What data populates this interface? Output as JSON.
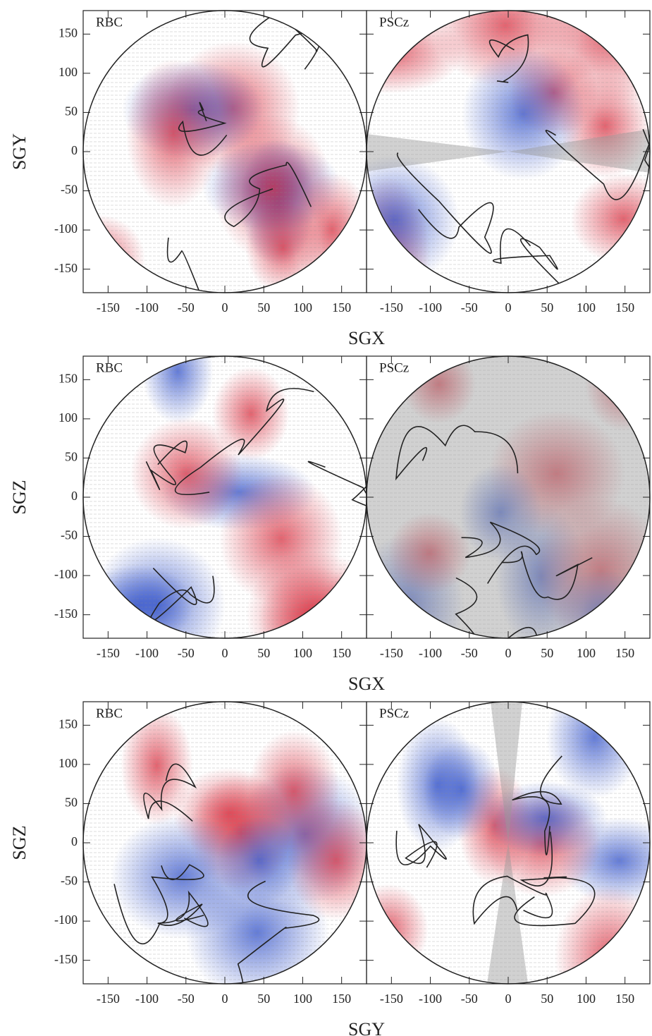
{
  "chart_data": [
    {
      "type": "vector-field",
      "xlabel": "SGX",
      "ylabel": "SGY",
      "panels": [
        {
          "label": "RBC"
        },
        {
          "label": "PSCz"
        }
      ],
      "xlim": [
        -182,
        182
      ],
      "ylim": [
        -180,
        180
      ],
      "xticks": [
        -150,
        -100,
        -50,
        0,
        50,
        100,
        150
      ],
      "yticks": [
        -150,
        -100,
        -50,
        0,
        50,
        100,
        150
      ]
    },
    {
      "type": "vector-field",
      "xlabel": "SGX",
      "ylabel": "SGZ",
      "panels": [
        {
          "label": "RBC"
        },
        {
          "label": "PSCz"
        }
      ],
      "xlim": [
        -182,
        182
      ],
      "ylim": [
        -180,
        180
      ],
      "xticks": [
        -150,
        -100,
        -50,
        0,
        50,
        100,
        150
      ],
      "yticks": [
        -150,
        -100,
        -50,
        0,
        50,
        100,
        150
      ]
    },
    {
      "type": "vector-field",
      "xlabel": "SGY",
      "ylabel": "SGZ",
      "panels": [
        {
          "label": "RBC"
        },
        {
          "label": "PSCz"
        }
      ],
      "xlim": [
        -182,
        182
      ],
      "ylim": [
        -180,
        180
      ],
      "xticks": [
        -150,
        -100,
        -50,
        0,
        50,
        100,
        150
      ],
      "yticks": [
        -150,
        -100,
        -50,
        0,
        50,
        100,
        150
      ]
    }
  ]
}
